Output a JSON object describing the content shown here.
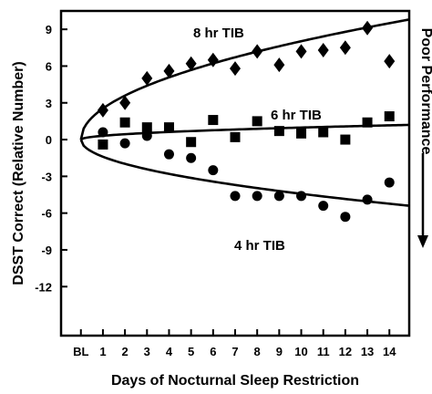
{
  "chart_data": {
    "type": "scatter",
    "xlabel": "Days of Nocturnal Sleep Restriction",
    "ylabel": "DSST Correct (Relative Number)",
    "right_label": "Poor Performance",
    "x_categories": [
      "BL",
      "1",
      "2",
      "3",
      "4",
      "5",
      "6",
      "7",
      "8",
      "9",
      "10",
      "11",
      "12",
      "13",
      "14"
    ],
    "x": [
      0,
      1,
      2,
      3,
      4,
      5,
      6,
      7,
      8,
      9,
      10,
      11,
      12,
      13,
      14
    ],
    "yticks": [
      "9",
      "6",
      "3",
      "0",
      "-3",
      "-6",
      "-9",
      "-12"
    ],
    "ylim": [
      -16,
      10.5
    ],
    "xlim": [
      -0.9,
      14.9
    ],
    "grid": false,
    "series": [
      {
        "name": "8 hr TIB",
        "marker": "diamond",
        "points": [
          [
            1,
            2.4
          ],
          [
            2,
            3.0
          ],
          [
            3,
            5.0
          ],
          [
            4,
            5.6
          ],
          [
            5,
            6.2
          ],
          [
            6,
            6.5
          ],
          [
            7,
            5.8
          ],
          [
            8,
            7.2
          ],
          [
            9,
            6.1
          ],
          [
            10,
            7.2
          ],
          [
            11,
            7.3
          ],
          [
            12,
            7.5
          ],
          [
            13,
            9.1
          ],
          [
            14,
            6.4
          ]
        ],
        "fit": "power",
        "fit_end": 9.8
      },
      {
        "name": "6 hr TIB",
        "marker": "square",
        "points": [
          [
            1,
            -0.4
          ],
          [
            2,
            1.4
          ],
          [
            3,
            1.0
          ],
          [
            4,
            1.0
          ],
          [
            5,
            -0.2
          ],
          [
            6,
            1.6
          ],
          [
            7,
            0.2
          ],
          [
            8,
            1.5
          ],
          [
            9,
            0.7
          ],
          [
            10,
            0.5
          ],
          [
            11,
            0.6
          ],
          [
            12,
            0.0
          ],
          [
            13,
            1.4
          ],
          [
            14,
            1.9
          ]
        ],
        "fit": "power",
        "fit_end": 1.2
      },
      {
        "name": "4 hr TIB",
        "marker": "circle",
        "points": [
          [
            1,
            0.6
          ],
          [
            2,
            -0.3
          ],
          [
            3,
            0.3
          ],
          [
            4,
            -1.2
          ],
          [
            5,
            -1.5
          ],
          [
            6,
            -2.5
          ],
          [
            7,
            -4.6
          ],
          [
            8,
            -4.6
          ],
          [
            9,
            -4.6
          ],
          [
            10,
            -4.6
          ],
          [
            11,
            -5.4
          ],
          [
            12,
            -6.3
          ],
          [
            13,
            -4.9
          ],
          [
            14,
            -3.5
          ]
        ],
        "fit": "power",
        "fit_end": -5.4
      }
    ]
  }
}
